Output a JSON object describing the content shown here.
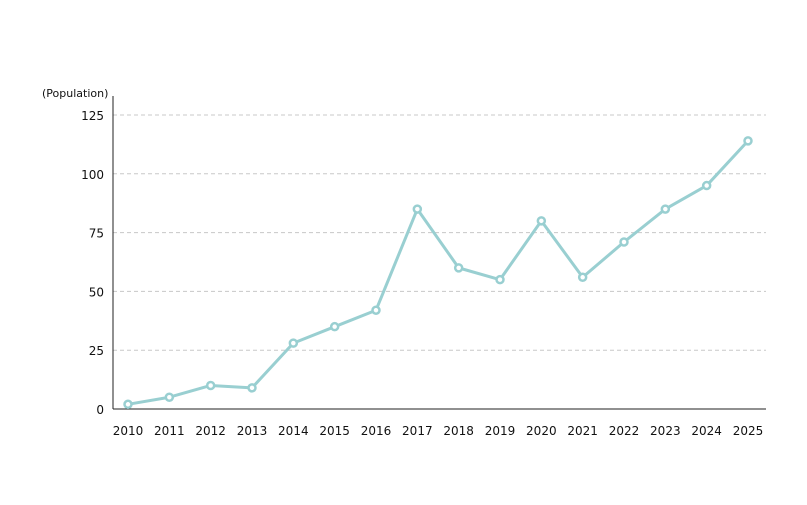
{
  "chart_data": {
    "type": "line",
    "title": "",
    "xlabel": "",
    "ylabel": "(Population)",
    "ylim": [
      0,
      125
    ],
    "yticks": [
      0,
      25,
      50,
      75,
      100,
      125
    ],
    "grid": true,
    "categories": [
      "2010",
      "2011",
      "2012",
      "2013",
      "2014",
      "2015",
      "2016",
      "2017",
      "2018",
      "2019",
      "2020",
      "2021",
      "2022",
      "2023",
      "2024",
      "2025"
    ],
    "series": [
      {
        "name": "Population",
        "color": "#99cfd1",
        "values": [
          2,
          5,
          10,
          9,
          28,
          35,
          42,
          85,
          60,
          55,
          80,
          56,
          71,
          85,
          95,
          114
        ]
      }
    ]
  }
}
